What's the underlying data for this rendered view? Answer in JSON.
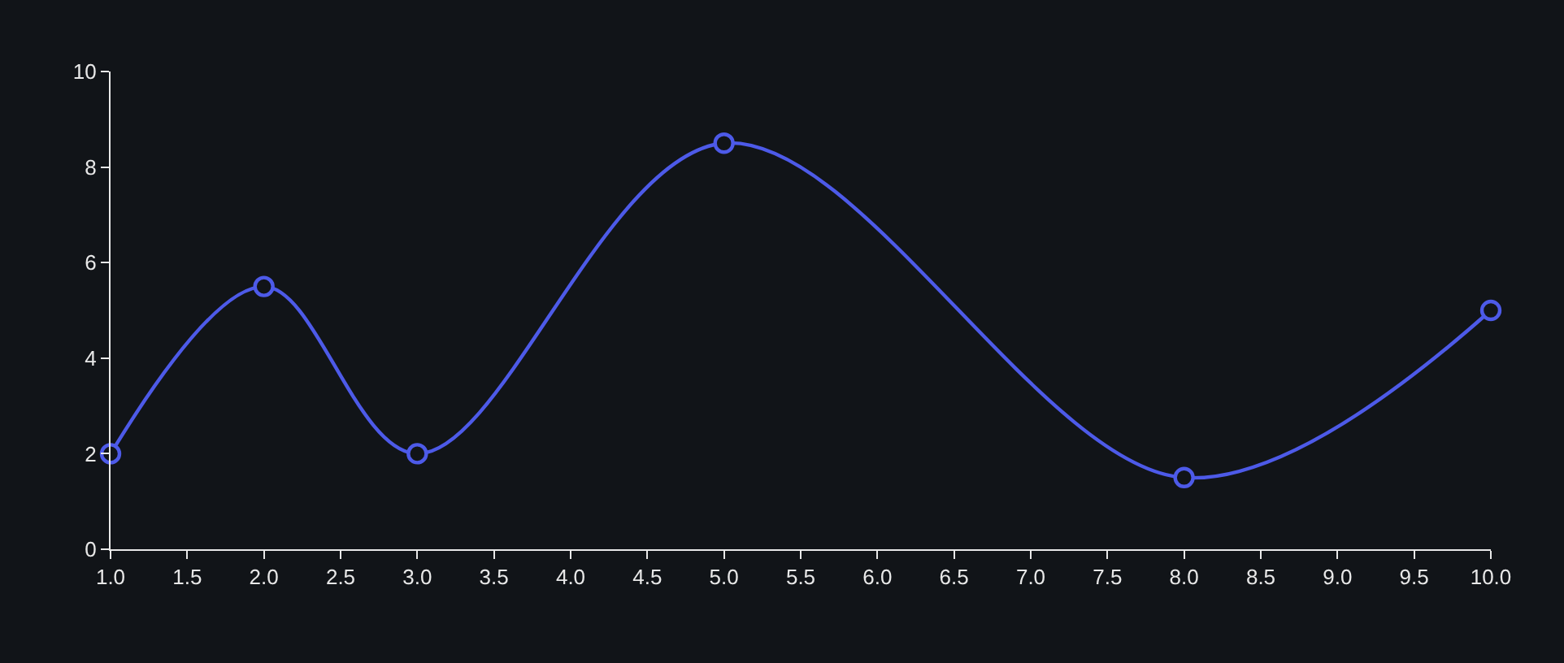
{
  "chart_data": {
    "type": "line",
    "x": [
      1,
      2,
      3,
      5,
      8,
      10
    ],
    "series": [
      {
        "color": "#4d5ae8",
        "values": [
          2,
          5.5,
          2,
          8.5,
          1.5,
          5
        ]
      }
    ],
    "xlim": [
      1,
      10
    ],
    "xticks": [
      {
        "value": 1,
        "label": "1.0"
      },
      {
        "value": 1.5,
        "label": "1.5"
      },
      {
        "value": 2,
        "label": "2.0"
      },
      {
        "value": 2.5,
        "label": "2.5"
      },
      {
        "value": 3,
        "label": "3.0"
      },
      {
        "value": 3.5,
        "label": "3.5"
      },
      {
        "value": 4,
        "label": "4.0"
      },
      {
        "value": 4.5,
        "label": "4.5"
      },
      {
        "value": 5,
        "label": "5.0"
      },
      {
        "value": 5.5,
        "label": "5.5"
      },
      {
        "value": 6,
        "label": "6.0"
      },
      {
        "value": 6.5,
        "label": "6.5"
      },
      {
        "value": 7,
        "label": "7.0"
      },
      {
        "value": 7.5,
        "label": "7.5"
      },
      {
        "value": 8,
        "label": "8.0"
      },
      {
        "value": 8.5,
        "label": "8.5"
      },
      {
        "value": 9,
        "label": "9.0"
      },
      {
        "value": 9.5,
        "label": "9.5"
      },
      {
        "value": 10,
        "label": "10.0"
      }
    ],
    "ylim": [
      0,
      10
    ],
    "yticks": [
      0,
      2,
      4,
      6,
      8,
      10
    ],
    "grid": false,
    "legend": false,
    "marker": "circle",
    "line_style": "solid"
  }
}
